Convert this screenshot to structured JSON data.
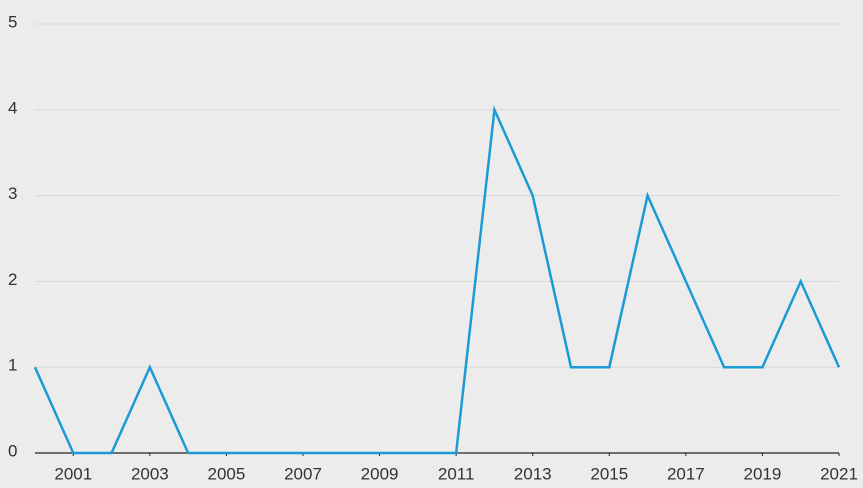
{
  "chart_data": {
    "type": "line",
    "x": [
      2000,
      2001,
      2002,
      2003,
      2004,
      2005,
      2006,
      2007,
      2008,
      2009,
      2010,
      2011,
      2012,
      2013,
      2014,
      2015,
      2016,
      2017,
      2018,
      2019,
      2020,
      2021
    ],
    "series": [
      {
        "color": "#1b9ad6",
        "values": [
          1,
          0,
          0,
          1,
          0,
          0,
          0,
          0,
          0,
          0,
          0,
          0,
          4,
          3,
          1,
          1,
          3,
          2,
          1,
          1,
          2,
          1
        ]
      }
    ],
    "xlim": [
      2000,
      2021
    ],
    "xticks": [
      2001,
      2003,
      2005,
      2007,
      2009,
      2011,
      2013,
      2015,
      2017,
      2019,
      2021
    ],
    "ylim": [
      0,
      5
    ],
    "yticks": [
      0,
      1,
      2,
      3,
      4,
      5
    ],
    "grid": true
  }
}
